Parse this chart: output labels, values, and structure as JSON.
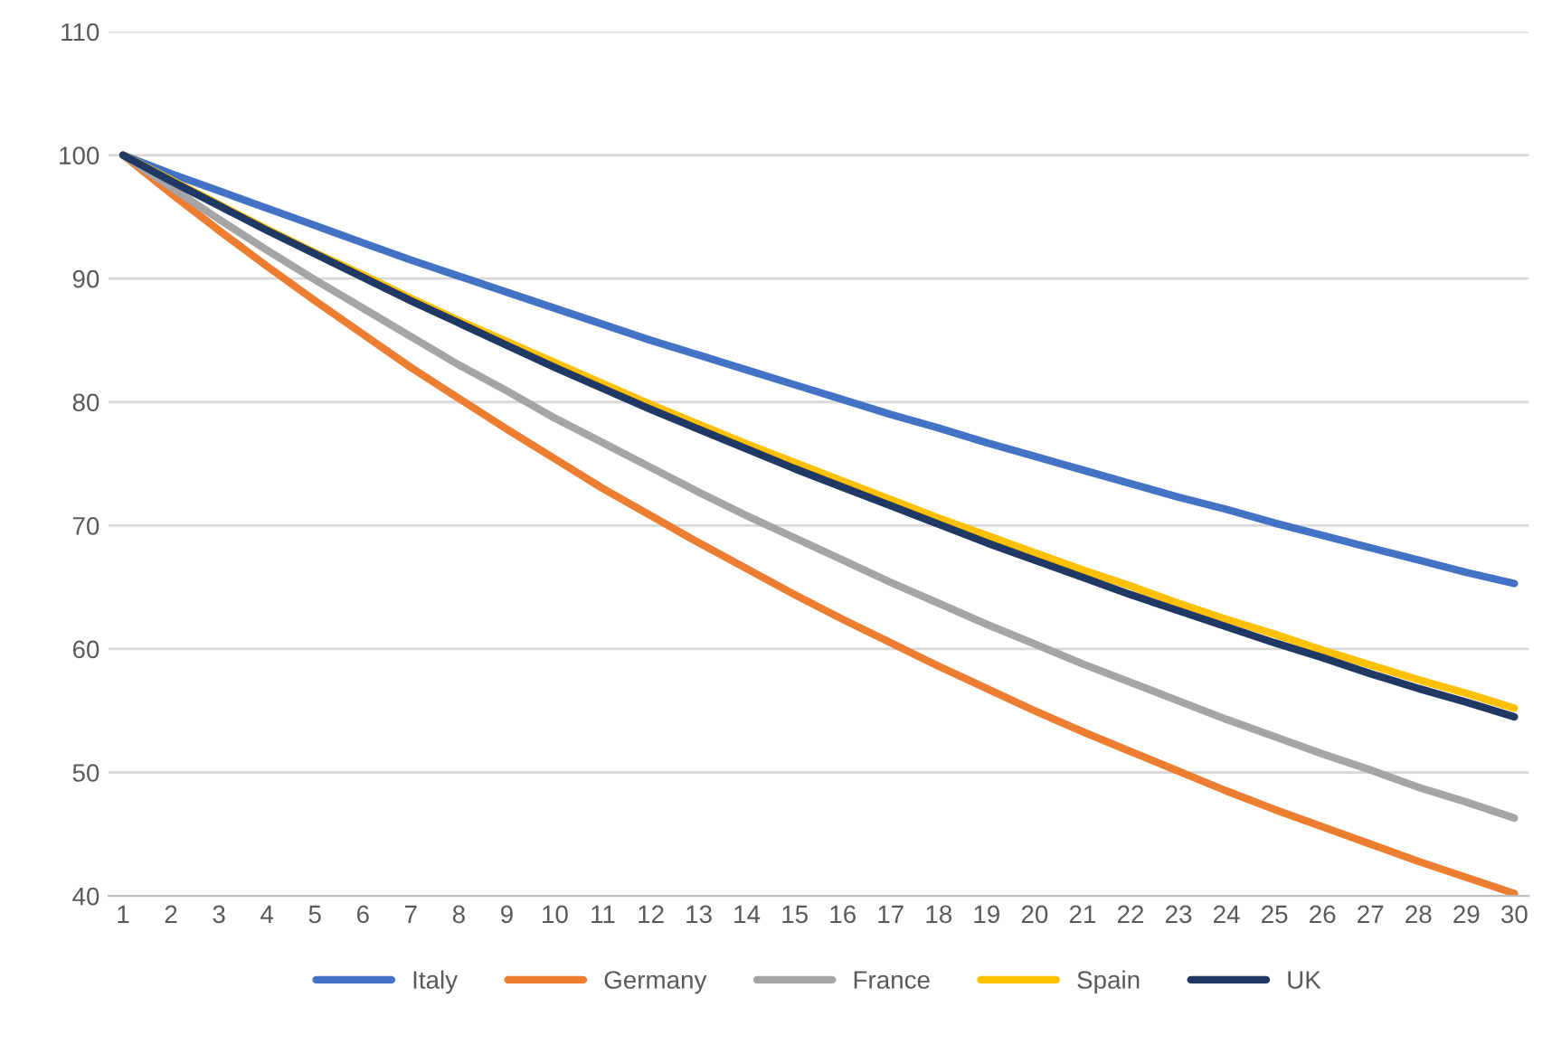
{
  "chart_data": {
    "type": "line",
    "categories": [
      "1",
      "2",
      "3",
      "4",
      "5",
      "6",
      "7",
      "8",
      "9",
      "10",
      "11",
      "12",
      "13",
      "14",
      "15",
      "16",
      "17",
      "18",
      "19",
      "20",
      "21",
      "22",
      "23",
      "24",
      "25",
      "26",
      "27",
      "28",
      "29",
      "30"
    ],
    "series": [
      {
        "name": "Italy",
        "color": "#4472c4",
        "values": [
          100,
          98.5,
          97.1,
          95.7,
          94.3,
          92.9,
          91.5,
          90.2,
          88.9,
          87.6,
          86.3,
          85.0,
          83.8,
          82.6,
          81.4,
          80.2,
          79.0,
          77.9,
          76.7,
          75.6,
          74.5,
          73.4,
          72.3,
          71.3,
          70.2,
          69.2,
          68.2,
          67.2,
          66.2,
          65.3
        ]
      },
      {
        "name": "Germany",
        "color": "#ed7d31",
        "values": [
          100,
          96.9,
          93.9,
          91.0,
          88.2,
          85.5,
          82.8,
          80.3,
          77.8,
          75.4,
          73.0,
          70.8,
          68.6,
          66.5,
          64.4,
          62.4,
          60.5,
          58.6,
          56.8,
          55.0,
          53.3,
          51.7,
          50.1,
          48.5,
          47.0,
          45.6,
          44.2,
          42.8,
          41.5,
          40.2
        ]
      },
      {
        "name": "France",
        "color": "#a5a5a5",
        "values": [
          100,
          97.4,
          94.8,
          92.3,
          89.9,
          87.6,
          85.3,
          83.0,
          80.9,
          78.7,
          76.7,
          74.7,
          72.7,
          70.8,
          69.0,
          67.2,
          65.4,
          63.7,
          62.0,
          60.4,
          58.8,
          57.3,
          55.8,
          54.3,
          52.9,
          51.5,
          50.2,
          48.8,
          47.6,
          46.3
        ]
      },
      {
        "name": "Spain",
        "color": "#ffc000",
        "values": [
          100,
          98.0,
          96.0,
          94.0,
          92.1,
          90.3,
          88.4,
          86.6,
          84.9,
          83.2,
          81.5,
          79.8,
          78.2,
          76.6,
          75.1,
          73.6,
          72.1,
          70.6,
          69.2,
          67.8,
          66.4,
          65.1,
          63.7,
          62.4,
          61.2,
          59.9,
          58.7,
          57.5,
          56.4,
          55.2
        ]
      },
      {
        "name": "UK",
        "color": "#1f3864",
        "values": [
          100,
          97.9,
          95.9,
          93.9,
          92.0,
          90.1,
          88.2,
          86.4,
          84.6,
          82.8,
          81.1,
          79.4,
          77.8,
          76.2,
          74.6,
          73.1,
          71.6,
          70.1,
          68.6,
          67.2,
          65.8,
          64.4,
          63.1,
          61.8,
          60.5,
          59.3,
          58.0,
          56.8,
          55.7,
          54.5
        ]
      }
    ],
    "ylim": [
      40,
      110
    ],
    "yticks": [
      40,
      50,
      60,
      70,
      80,
      90,
      100,
      110
    ],
    "grid": "y",
    "legend": "bottom",
    "line_style": "solid",
    "marker": "none"
  }
}
